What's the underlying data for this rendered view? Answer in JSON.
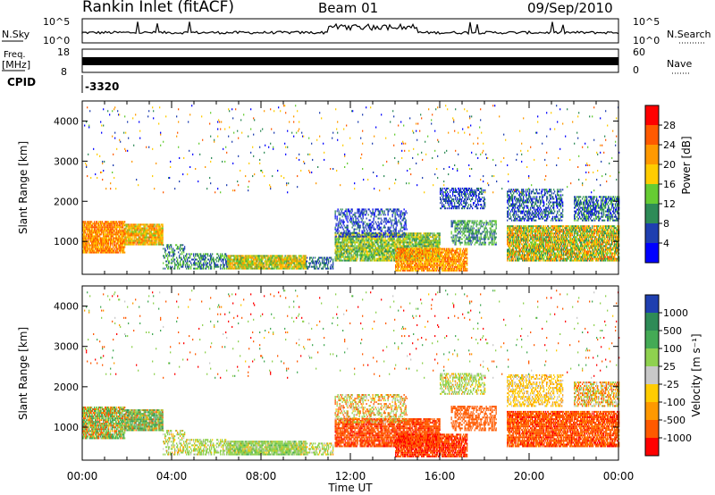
{
  "header": {
    "station": "Rankin Inlet (fitACF)",
    "beam": "Beam 01",
    "date": "09/Sep/2010"
  },
  "panels": {
    "nsky_label": "N.Sky",
    "nsky_ticks": [
      "10^5",
      "10^0"
    ],
    "nsearch_label": "N.Search",
    "nsearch_ticks": [
      "10^5",
      "10^0"
    ],
    "freq_label_top": "Freq.",
    "freq_label_unit": "[MHz]",
    "freq_ticks": [
      "18",
      "8"
    ],
    "nave_label": "Nave",
    "nave_ticks": [
      "60",
      "0"
    ],
    "cpid_label": "CPID",
    "cpid_value": "-3320"
  },
  "chart_data": [
    {
      "type": "heatmap",
      "name": "power",
      "xlabel": "Time UT",
      "ylabel": "Slant Range [km]",
      "x_ticks": [
        "00:00",
        "04:00",
        "08:00",
        "12:00",
        "16:00",
        "20:00",
        "00:00"
      ],
      "xlim_hours": [
        0,
        24
      ],
      "ylim_km": [
        180,
        4500
      ],
      "y_ticks": [
        1000,
        2000,
        3000,
        4000
      ],
      "colorbar_label": "Power [dB]",
      "colorbar_ticks": [
        "28",
        "24",
        "20",
        "16",
        "12",
        "8",
        "4"
      ],
      "colorbar_colors": [
        "#ff0000",
        "#ff5a00",
        "#ff9900",
        "#ffcc00",
        "#66cc33",
        "#2e8b57",
        "#1f3fb0",
        "#0000ff"
      ]
    },
    {
      "type": "heatmap",
      "name": "velocity",
      "xlabel": "Time UT",
      "ylabel": "Slant Range [km]",
      "x_ticks": [
        "00:00",
        "04:00",
        "08:00",
        "12:00",
        "16:00",
        "20:00",
        "00:00"
      ],
      "xlim_hours": [
        0,
        24
      ],
      "ylim_km": [
        180,
        4500
      ],
      "y_ticks": [
        1000,
        2000,
        3000,
        4000
      ],
      "colorbar_label": "Velocity [m s⁻¹]",
      "colorbar_ticks": [
        "1000",
        "500",
        "100",
        "25",
        "-25",
        "-100",
        "-500",
        "-1000"
      ],
      "colorbar_colors": [
        "#1f3fb0",
        "#2e8b57",
        "#44aa55",
        "#8fd14f",
        "#c8c8c8",
        "#ffcc00",
        "#ff9900",
        "#ff5a00",
        "#ff0000"
      ]
    }
  ],
  "scatter_regions": [
    {
      "t0": 0.0,
      "t1": 1.9,
      "r0": 700,
      "r1": 1500,
      "d": 0.9,
      "p": [
        20,
        30
      ],
      "v": [
        -400,
        900
      ]
    },
    {
      "t0": 1.9,
      "t1": 3.6,
      "r0": 900,
      "r1": 1400,
      "d": 0.9,
      "p": [
        16,
        28
      ],
      "v": [
        -300,
        1200
      ]
    },
    {
      "t0": 3.6,
      "t1": 4.6,
      "r0": 300,
      "r1": 900,
      "d": 0.4,
      "p": [
        6,
        18
      ],
      "v": [
        -100,
        300
      ]
    },
    {
      "t0": 4.6,
      "t1": 6.5,
      "r0": 300,
      "r1": 700,
      "d": 0.5,
      "p": [
        6,
        18
      ],
      "v": [
        -50,
        400
      ]
    },
    {
      "t0": 6.5,
      "t1": 10.0,
      "r0": 300,
      "r1": 650,
      "d": 0.9,
      "p": [
        12,
        26
      ],
      "v": [
        -50,
        600
      ]
    },
    {
      "t0": 10.0,
      "t1": 11.2,
      "r0": 300,
      "r1": 600,
      "d": 0.5,
      "p": [
        6,
        14
      ],
      "v": [
        -50,
        300
      ]
    },
    {
      "t0": 11.3,
      "t1": 16.0,
      "r0": 500,
      "r1": 1200,
      "d": 0.8,
      "p": [
        10,
        22
      ],
      "v": [
        -600,
        -150
      ]
    },
    {
      "t0": 11.3,
      "t1": 14.5,
      "r0": 1100,
      "r1": 1800,
      "d": 0.4,
      "p": [
        4,
        12
      ],
      "v": [
        -300,
        300
      ]
    },
    {
      "t0": 14.0,
      "t1": 17.2,
      "r0": 250,
      "r1": 800,
      "d": 0.85,
      "p": [
        18,
        30
      ],
      "v": [
        -700,
        -200
      ]
    },
    {
      "t0": 16.0,
      "t1": 18.0,
      "r0": 1800,
      "r1": 2300,
      "d": 0.5,
      "p": [
        4,
        12
      ],
      "v": [
        -50,
        300
      ]
    },
    {
      "t0": 16.5,
      "t1": 18.5,
      "r0": 900,
      "r1": 1500,
      "d": 0.5,
      "p": [
        8,
        18
      ],
      "v": [
        -500,
        -100
      ]
    },
    {
      "t0": 19.0,
      "t1": 21.5,
      "r0": 1500,
      "r1": 2300,
      "d": 0.5,
      "p": [
        4,
        14
      ],
      "v": [
        -50,
        50
      ]
    },
    {
      "t0": 19.0,
      "t1": 24.0,
      "r0": 500,
      "r1": 1400,
      "d": 0.85,
      "p": [
        10,
        28
      ],
      "v": [
        -600,
        -50
      ]
    },
    {
      "t0": 22.0,
      "t1": 24.0,
      "r0": 1500,
      "r1": 2100,
      "d": 0.6,
      "p": [
        4,
        16
      ],
      "v": [
        -200,
        200
      ]
    },
    {
      "t0": 0.0,
      "t1": 24.0,
      "r0": 2200,
      "r1": 4400,
      "d": 0.018,
      "p": [
        2,
        30
      ],
      "v": [
        -800,
        800
      ]
    }
  ]
}
